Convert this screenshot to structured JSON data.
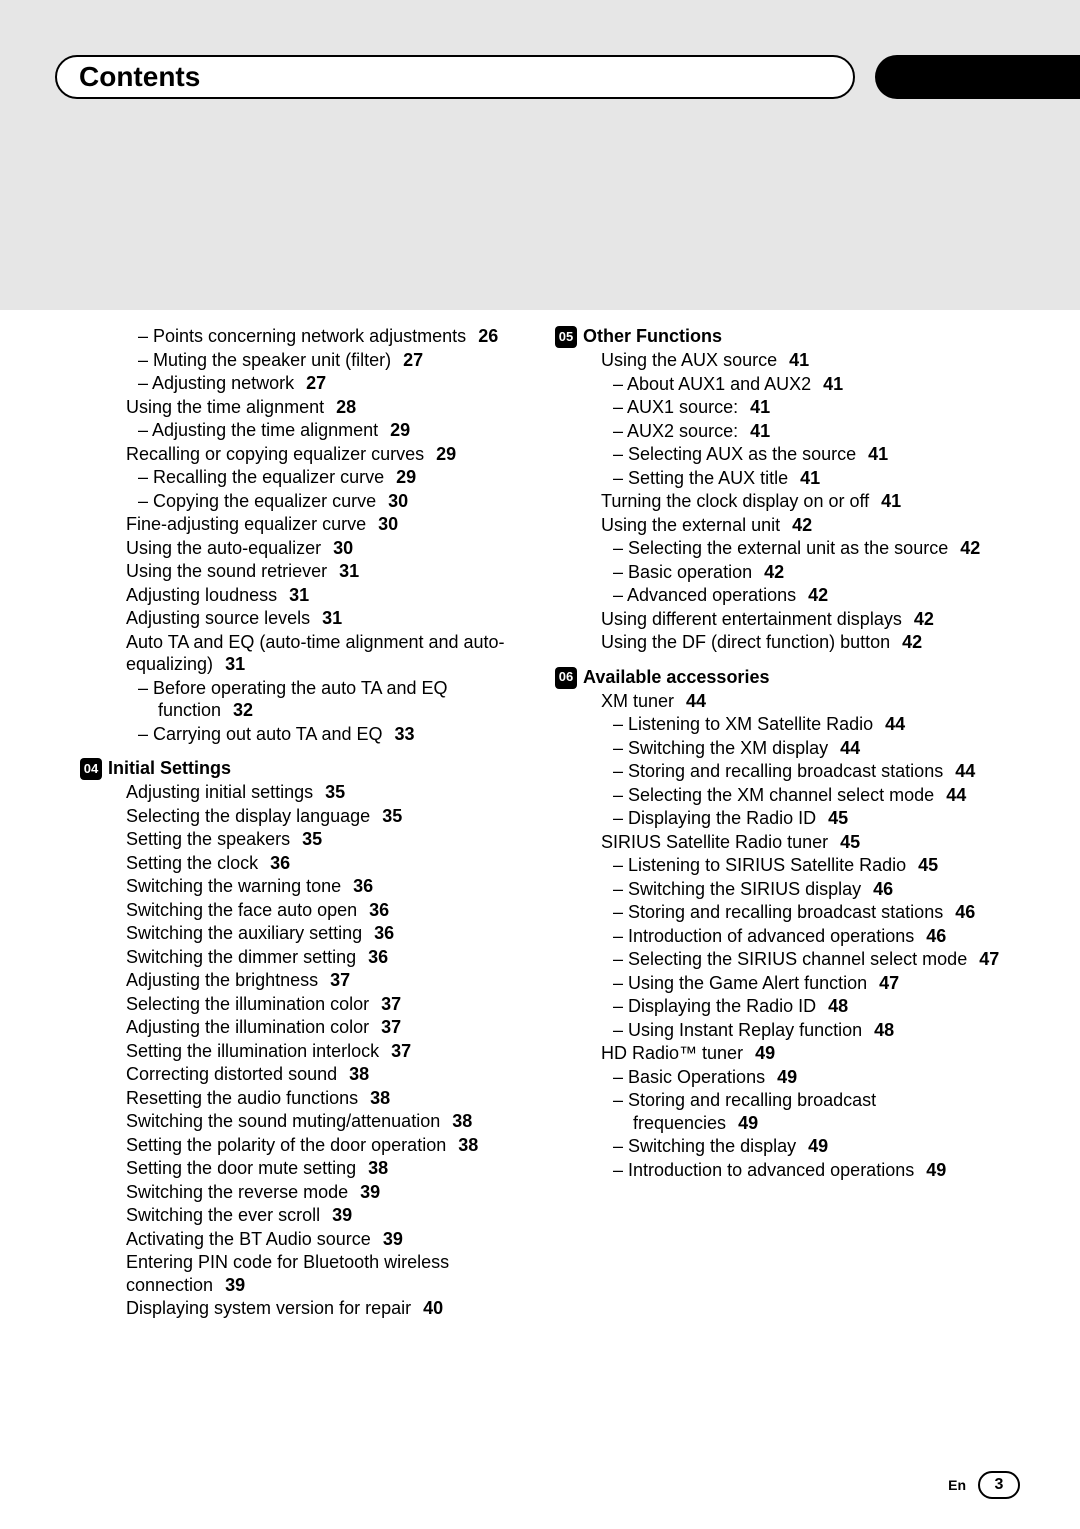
{
  "header": {
    "title": "Contents"
  },
  "footer": {
    "lang": "En",
    "page": "3"
  },
  "left": {
    "pre": [
      {
        "lvl": 1,
        "t": "Points concerning network adjustments",
        "p": "26"
      },
      {
        "lvl": 1,
        "t": "Muting the speaker unit (filter)",
        "p": "27"
      },
      {
        "lvl": 1,
        "t": "Adjusting network",
        "p": "27"
      },
      {
        "lvl": 0,
        "t": "Using the time alignment",
        "p": "28"
      },
      {
        "lvl": 1,
        "t": "Adjusting the time alignment",
        "p": "29"
      },
      {
        "lvl": 0,
        "t": "Recalling or copying equalizer curves",
        "p": "29"
      },
      {
        "lvl": 1,
        "t": "Recalling the equalizer curve",
        "p": "29"
      },
      {
        "lvl": 1,
        "t": "Copying the equalizer curve",
        "p": "30"
      },
      {
        "lvl": 0,
        "t": "Fine-adjusting equalizer curve",
        "p": "30"
      },
      {
        "lvl": 0,
        "t": "Using the auto-equalizer",
        "p": "30"
      },
      {
        "lvl": 0,
        "t": "Using the sound retriever",
        "p": "31"
      },
      {
        "lvl": 0,
        "t": "Adjusting loudness",
        "p": "31"
      },
      {
        "lvl": 0,
        "t": "Adjusting source levels",
        "p": "31"
      },
      {
        "lvl": 0,
        "t": "Auto TA and EQ (auto-time alignment and auto-equalizing)",
        "p": "31"
      },
      {
        "lvl": 1,
        "t": "Before operating the auto TA and EQ function",
        "p": "32"
      },
      {
        "lvl": 1,
        "t": "Carrying out auto TA and EQ",
        "p": "33"
      }
    ],
    "s04": {
      "num": "04",
      "title": "Initial Settings",
      "items": [
        {
          "lvl": 0,
          "t": "Adjusting initial settings",
          "p": "35"
        },
        {
          "lvl": 0,
          "t": "Selecting the display language",
          "p": "35"
        },
        {
          "lvl": 0,
          "t": "Setting the speakers",
          "p": "35"
        },
        {
          "lvl": 0,
          "t": "Setting the clock",
          "p": "36"
        },
        {
          "lvl": 0,
          "t": "Switching the warning tone",
          "p": "36"
        },
        {
          "lvl": 0,
          "t": "Switching the face auto open",
          "p": "36"
        },
        {
          "lvl": 0,
          "t": "Switching the auxiliary setting",
          "p": "36"
        },
        {
          "lvl": 0,
          "t": "Switching the dimmer setting",
          "p": "36"
        },
        {
          "lvl": 0,
          "t": "Adjusting the brightness",
          "p": "37"
        },
        {
          "lvl": 0,
          "t": "Selecting the illumination color",
          "p": "37"
        },
        {
          "lvl": 0,
          "t": "Adjusting the illumination color",
          "p": "37"
        },
        {
          "lvl": 0,
          "t": "Setting the illumination interlock",
          "p": "37"
        },
        {
          "lvl": 0,
          "t": "Correcting distorted sound",
          "p": "38"
        },
        {
          "lvl": 0,
          "t": "Resetting the audio functions",
          "p": "38"
        },
        {
          "lvl": 0,
          "t": "Switching the sound muting/attenuation",
          "p": "38"
        },
        {
          "lvl": 0,
          "t": "Setting the polarity of the door operation",
          "p": "38"
        },
        {
          "lvl": 0,
          "t": "Setting the door mute setting",
          "p": "38"
        },
        {
          "lvl": 0,
          "t": "Switching the reverse mode",
          "p": "39"
        },
        {
          "lvl": 0,
          "t": "Switching the ever scroll",
          "p": "39"
        },
        {
          "lvl": 0,
          "t": "Activating the BT Audio source",
          "p": "39"
        },
        {
          "lvl": 0,
          "t": "Entering PIN code for Bluetooth wireless connection",
          "p": "39"
        },
        {
          "lvl": 0,
          "t": "Displaying system version for repair",
          "p": "40"
        }
      ]
    }
  },
  "right": {
    "s05": {
      "num": "05",
      "title": "Other Functions",
      "items": [
        {
          "lvl": 0,
          "t": "Using the AUX source",
          "p": "41"
        },
        {
          "lvl": 1,
          "t": "About AUX1 and AUX2",
          "p": "41"
        },
        {
          "lvl": 1,
          "t": "AUX1 source:",
          "p": "41"
        },
        {
          "lvl": 1,
          "t": "AUX2 source:",
          "p": "41"
        },
        {
          "lvl": 1,
          "t": "Selecting AUX as the source",
          "p": "41"
        },
        {
          "lvl": 1,
          "t": "Setting the AUX title",
          "p": "41"
        },
        {
          "lvl": 0,
          "t": "Turning the clock display on or off",
          "p": "41"
        },
        {
          "lvl": 0,
          "t": "Using the external unit",
          "p": "42"
        },
        {
          "lvl": 1,
          "t": "Selecting the external unit as the source",
          "p": "42"
        },
        {
          "lvl": 1,
          "t": "Basic operation",
          "p": "42"
        },
        {
          "lvl": 1,
          "t": "Advanced operations",
          "p": "42"
        },
        {
          "lvl": 0,
          "t": "Using different entertainment displays",
          "p": "42"
        },
        {
          "lvl": 0,
          "t": "Using the DF (direct function) button",
          "p": "42"
        }
      ]
    },
    "s06": {
      "num": "06",
      "title": "Available accessories",
      "items": [
        {
          "lvl": 0,
          "t": "XM tuner",
          "p": "44"
        },
        {
          "lvl": 1,
          "t": "Listening to XM Satellite Radio",
          "p": "44"
        },
        {
          "lvl": 1,
          "t": "Switching the XM display",
          "p": "44"
        },
        {
          "lvl": 1,
          "t": "Storing and recalling broadcast stations",
          "p": "44"
        },
        {
          "lvl": 1,
          "t": "Selecting the XM channel select mode",
          "p": "44"
        },
        {
          "lvl": 1,
          "t": "Displaying the Radio ID",
          "p": "45"
        },
        {
          "lvl": 0,
          "t": "SIRIUS Satellite Radio tuner",
          "p": "45"
        },
        {
          "lvl": 1,
          "t": "Listening to SIRIUS Satellite Radio",
          "p": "45"
        },
        {
          "lvl": 1,
          "t": "Switching the SIRIUS display",
          "p": "46"
        },
        {
          "lvl": 1,
          "t": "Storing and recalling broadcast stations",
          "p": "46"
        },
        {
          "lvl": 1,
          "t": "Introduction of advanced operations",
          "p": "46"
        },
        {
          "lvl": 1,
          "t": "Selecting the SIRIUS channel select mode",
          "p": "47"
        },
        {
          "lvl": 1,
          "t": "Using the Game Alert function",
          "p": "47"
        },
        {
          "lvl": 1,
          "t": "Displaying the Radio ID",
          "p": "48"
        },
        {
          "lvl": 1,
          "t": "Using Instant Replay function",
          "p": "48"
        },
        {
          "lvl": 0,
          "t": "HD Radio™ tuner",
          "p": "49"
        },
        {
          "lvl": 1,
          "t": "Basic Operations",
          "p": "49"
        },
        {
          "lvl": 1,
          "t": "Storing and recalling broadcast frequencies",
          "p": "49"
        },
        {
          "lvl": 1,
          "t": "Switching the display",
          "p": "49"
        },
        {
          "lvl": 1,
          "t": "Introduction to advanced operations",
          "p": "49"
        }
      ]
    }
  }
}
